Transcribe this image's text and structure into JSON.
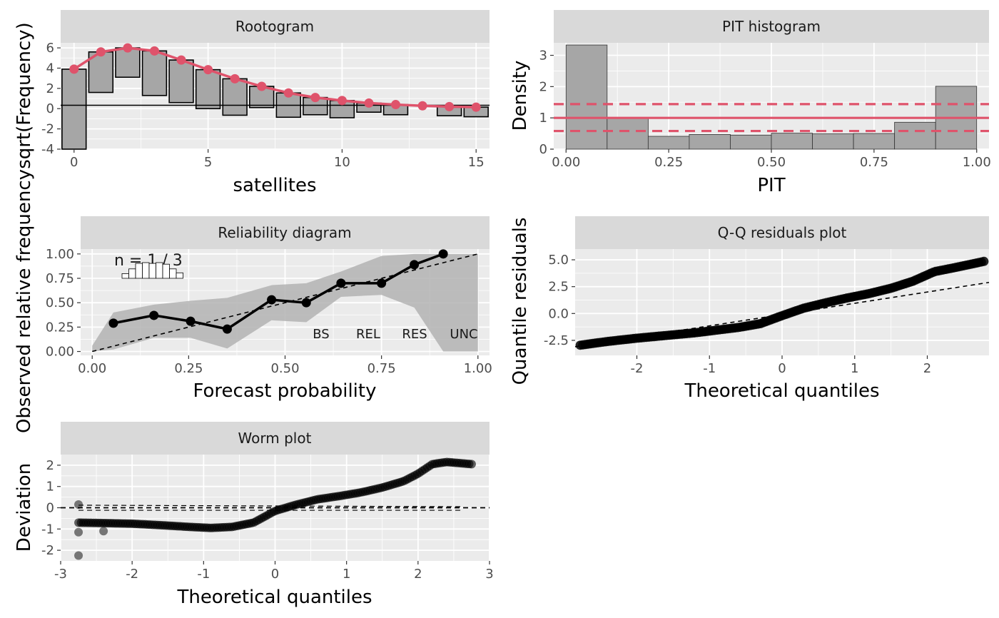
{
  "colors": {
    "panel_bg": "#ebebeb",
    "strip_bg": "#d9d9d9",
    "grid": "#ffffff",
    "bar_fill": "#a6a6a6",
    "accent": "#df536b",
    "point": "#000000"
  },
  "chart_data": [
    {
      "id": "rootogram",
      "type": "bar",
      "title": "Rootogram",
      "xlabel": "satellites",
      "ylabel": "sqrt(Frequency)",
      "xlim": [
        -0.5,
        15.5
      ],
      "ylim": [
        -4,
        6.5
      ],
      "xticks": [
        0,
        5,
        10,
        15
      ],
      "yticks": [
        -4,
        -2,
        0,
        2,
        4,
        6
      ],
      "x": [
        0,
        1,
        2,
        3,
        4,
        5,
        6,
        7,
        8,
        9,
        10,
        11,
        12,
        13,
        14,
        15
      ],
      "expected": [
        3.9,
        5.6,
        6.0,
        5.7,
        4.8,
        3.85,
        2.95,
        2.2,
        1.55,
        1.1,
        0.8,
        0.55,
        0.4,
        0.28,
        0.2,
        0.15
      ],
      "observed": [
        7.9,
        4.0,
        2.9,
        4.4,
        4.2,
        3.85,
        3.6,
        2.1,
        2.4,
        1.7,
        1.7,
        0.9,
        1.0,
        0.0,
        0.9,
        0.95
      ],
      "bar_top": [
        3.9,
        5.6,
        6.0,
        5.7,
        4.8,
        3.85,
        2.95,
        2.2,
        1.55,
        1.1,
        0.8,
        0.55,
        0.4,
        0.28,
        0.2,
        0.15
      ],
      "bar_bottom": [
        -4.0,
        1.6,
        3.1,
        1.3,
        0.6,
        0.0,
        -0.65,
        0.1,
        -0.85,
        -0.6,
        -0.9,
        -0.35,
        -0.6,
        0.28,
        -0.7,
        -0.8
      ]
    },
    {
      "id": "pit",
      "type": "bar",
      "title": "PIT histogram",
      "xlabel": "PIT",
      "ylabel": "Density",
      "xlim": [
        -0.03,
        1.03
      ],
      "ylim": [
        0,
        3.4
      ],
      "xticks": [
        0.0,
        0.25,
        0.5,
        0.75,
        1.0
      ],
      "xtick_labels": [
        "0.00",
        "0.25",
        "0.50",
        "0.75",
        "1.00"
      ],
      "yticks": [
        0,
        1,
        2,
        3
      ],
      "bin_edges": [
        0.0,
        0.1,
        0.2,
        0.3,
        0.4,
        0.5,
        0.6,
        0.7,
        0.8,
        0.9,
        1.0
      ],
      "values": [
        3.33,
        0.98,
        0.41,
        0.47,
        0.45,
        0.51,
        0.49,
        0.5,
        0.86,
        2.01
      ],
      "reference": 1.0,
      "confidence": [
        0.58,
        1.44
      ]
    },
    {
      "id": "reliability",
      "type": "line",
      "title": "Reliability diagram",
      "xlabel": "Forecast probability",
      "ylabel": "Observed relative frequency",
      "xlim": [
        -0.03,
        1.03
      ],
      "ylim": [
        0,
        1.0
      ],
      "xticks": [
        0.0,
        0.25,
        0.5,
        0.75,
        1.0
      ],
      "xtick_labels": [
        "0.00",
        "0.25",
        "0.50",
        "0.75",
        "1.00"
      ],
      "yticks": [
        0.0,
        0.25,
        0.5,
        0.75,
        1.0
      ],
      "ytick_labels": [
        "0.00",
        "0.25",
        "0.50",
        "0.75",
        "1.00"
      ],
      "x": [
        0.055,
        0.16,
        0.255,
        0.35,
        0.465,
        0.555,
        0.645,
        0.75,
        0.835,
        0.91
      ],
      "y": [
        0.29,
        0.37,
        0.31,
        0.23,
        0.53,
        0.5,
        0.7,
        0.7,
        0.89,
        1.0
      ],
      "band_x": [
        0.0,
        0.055,
        0.16,
        0.255,
        0.35,
        0.465,
        0.555,
        0.645,
        0.75,
        0.835,
        0.91,
        1.0
      ],
      "band_upper": [
        0.06,
        0.4,
        0.48,
        0.52,
        0.55,
        0.68,
        0.7,
        0.82,
        0.98,
        1.0,
        1.0,
        1.0
      ],
      "band_lower": [
        0.0,
        0.02,
        0.14,
        0.14,
        0.03,
        0.32,
        0.3,
        0.56,
        0.58,
        0.45,
        0.0,
        0.0
      ],
      "histogram_label": "n = 1 / 3",
      "histogram_heights": [
        0.3,
        0.6,
        0.95,
        1.0,
        0.95,
        1.0,
        0.9,
        0.6,
        0.35
      ],
      "score_labels": [
        "BS",
        "REL",
        "RES",
        "UNC"
      ]
    },
    {
      "id": "qq",
      "type": "scatter",
      "title": "Q-Q residuals plot",
      "xlabel": "Theoretical quantiles",
      "ylabel": "Quantile residuals",
      "xlim": [
        -2.85,
        2.85
      ],
      "ylim": [
        -3.9,
        6.0
      ],
      "xticks": [
        -2,
        -1,
        0,
        1,
        2
      ],
      "yticks": [
        -2.5,
        0.0,
        2.5,
        5.0
      ],
      "ytick_labels": [
        "-2.5",
        "0.0",
        "2.5",
        "5.0"
      ],
      "curve_x": [
        -2.78,
        -2.4,
        -2.0,
        -1.6,
        -1.2,
        -0.9,
        -0.6,
        -0.3,
        0.0,
        0.3,
        0.6,
        0.9,
        1.2,
        1.5,
        1.8,
        2.1,
        2.4,
        2.78
      ],
      "curve_y": [
        -2.95,
        -2.6,
        -2.3,
        -2.05,
        -1.8,
        -1.55,
        -1.3,
        -0.95,
        -0.2,
        0.5,
        1.0,
        1.45,
        1.85,
        2.35,
        3.0,
        3.9,
        4.3,
        4.85
      ],
      "reference_line": {
        "intercept": -0.1,
        "slope": 1.05
      }
    },
    {
      "id": "worm",
      "type": "scatter",
      "title": "Worm plot",
      "xlabel": "Theoretical quantiles",
      "ylabel": "Deviation",
      "xlim": [
        -3,
        3
      ],
      "ylim": [
        -2.5,
        2.5
      ],
      "xticks": [
        -3,
        -2,
        -1,
        0,
        1,
        2,
        3
      ],
      "yticks": [
        -2,
        -1,
        0,
        1,
        2
      ],
      "curve_x": [
        -2.75,
        -2.4,
        -2.0,
        -1.6,
        -1.2,
        -0.9,
        -0.6,
        -0.3,
        0.0,
        0.3,
        0.6,
        0.9,
        1.2,
        1.5,
        1.8,
        2.0,
        2.2,
        2.4,
        2.75
      ],
      "curve_y": [
        -0.7,
        -0.72,
        -0.75,
        -0.82,
        -0.9,
        -0.95,
        -0.9,
        -0.7,
        -0.15,
        0.15,
        0.4,
        0.55,
        0.72,
        0.95,
        1.25,
        1.6,
        2.05,
        2.15,
        2.05
      ],
      "outliers": [
        [
          -2.75,
          -2.25
        ],
        [
          -2.75,
          0.15
        ],
        [
          -2.75,
          -1.15
        ],
        [
          -2.4,
          -1.1
        ]
      ]
    }
  ]
}
